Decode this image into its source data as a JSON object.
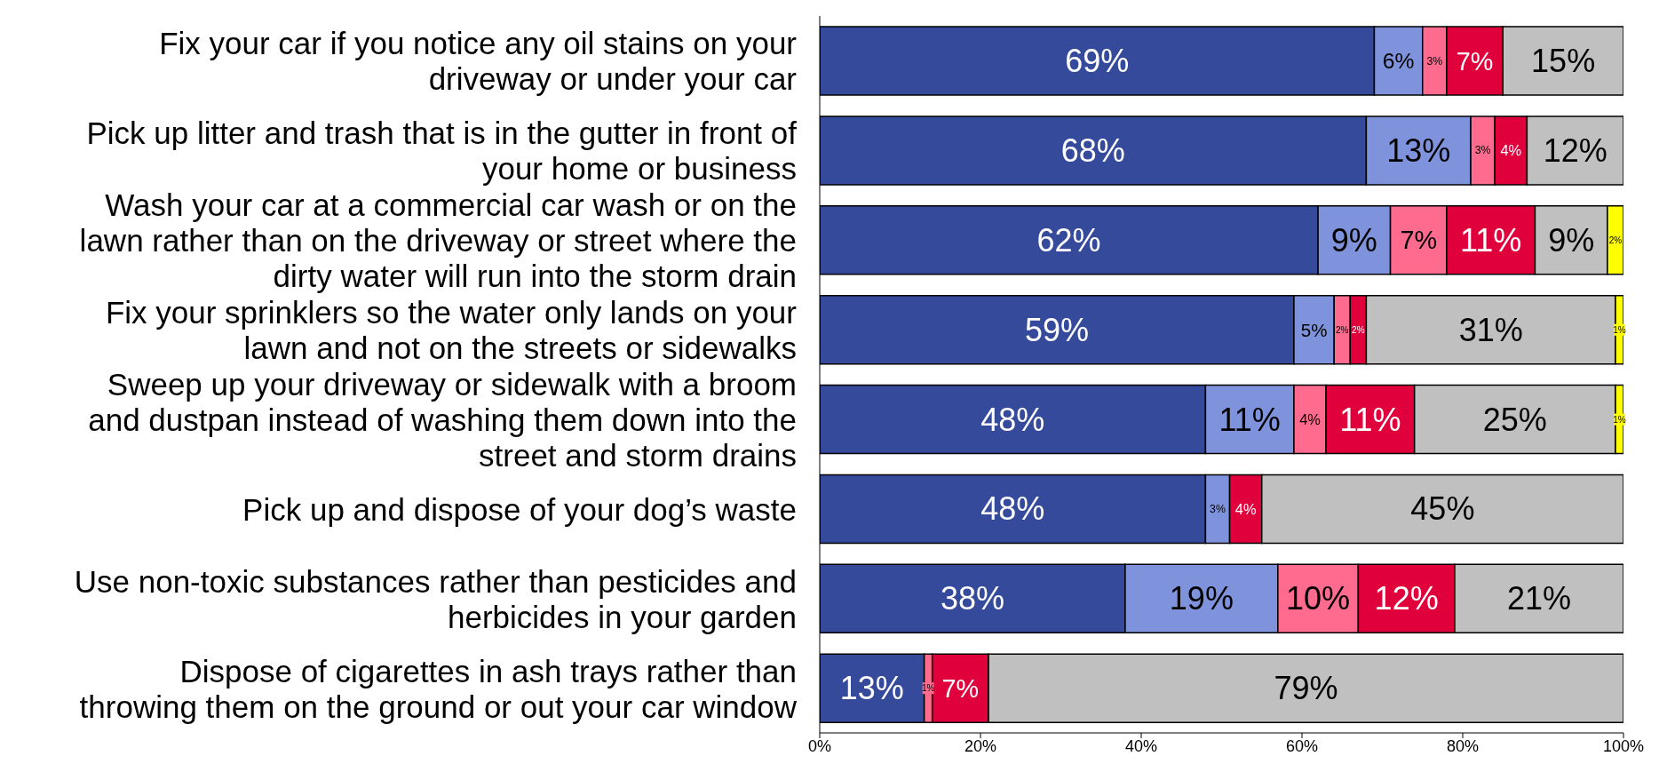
{
  "chart_data": {
    "type": "bar",
    "orientation": "horizontal",
    "stacked": true,
    "categories": [
      "Fix your car if you notice any oil stains on your driveway or under your car",
      "Pick up litter and trash that is in the gutter in front of your home or business",
      "Wash your car at a commercial car wash or on the lawn rather than on the driveway or street where the dirty water will run into the storm drain",
      "Fix your sprinklers so the water only lands on your lawn and not on the streets or sidewalks",
      "Sweep up your driveway or sidewalk with a broom and dustpan instead of washing them down into the street and storm drains",
      "Pick up and dispose of your dog’s waste",
      "Use non-toxic substances rather than pesticides and herbicides in your garden",
      "Dispose of cigarettes in ash trays rather than throwing them on the ground or out your car window"
    ],
    "series": [
      {
        "color": "#354a9b",
        "values": [
          69,
          68,
          62,
          59,
          48,
          48,
          38,
          13
        ],
        "value_labels": [
          "69%",
          "68%",
          "62%",
          "59%",
          "48%",
          "48%",
          "38%",
          "13%"
        ]
      },
      {
        "color": "#7f93dd",
        "values": [
          6,
          13,
          9,
          5,
          11,
          3,
          19,
          null
        ],
        "value_labels": [
          "6%",
          "13%",
          "9%",
          "5%",
          "11%",
          "3%",
          "19%",
          null
        ]
      },
      {
        "color": "#ff6b8f",
        "values": [
          3,
          3,
          7,
          2,
          4,
          null,
          10,
          1
        ],
        "value_labels": [
          "3%",
          "3%",
          "7%",
          "2%",
          "4%",
          null,
          "10%",
          "1%"
        ]
      },
      {
        "color": "#e0003c",
        "values": [
          7,
          4,
          11,
          2,
          11,
          4,
          12,
          7
        ],
        "value_labels": [
          "7%",
          "4%",
          "11%",
          "2%",
          "11%",
          "4%",
          "12%",
          "7%"
        ]
      },
      {
        "color": "#c0c0c0",
        "values": [
          15,
          12,
          9,
          31,
          25,
          45,
          21,
          79
        ],
        "value_labels": [
          "15%",
          "12%",
          "9%",
          "31%",
          "25%",
          "45%",
          "21%",
          "79%"
        ]
      },
      {
        "color": "#ffff00",
        "values": [
          null,
          null,
          2,
          1,
          1,
          null,
          null,
          null
        ],
        "value_labels": [
          null,
          null,
          "2%",
          "1%",
          "1%",
          null,
          null,
          null
        ]
      }
    ],
    "xlim": [
      0,
      100
    ],
    "xticks": [
      {
        "value": 0,
        "label": "0%"
      },
      {
        "value": 20,
        "label": "20%"
      },
      {
        "value": 40,
        "label": "40%"
      },
      {
        "value": 60,
        "label": "60%"
      },
      {
        "value": 80,
        "label": "80%"
      },
      {
        "value": 100,
        "label": "100%"
      }
    ],
    "grid": false,
    "legend": false
  }
}
